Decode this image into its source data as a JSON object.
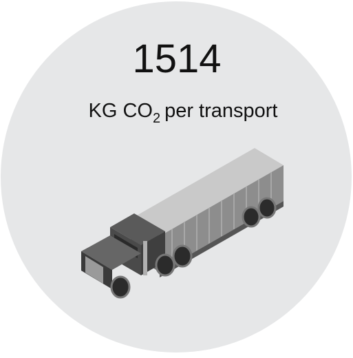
{
  "metric": {
    "value": "1514",
    "unit": {
      "prefix": "KG CO",
      "subscript": "2",
      "suffix": "per transport"
    }
  }
}
